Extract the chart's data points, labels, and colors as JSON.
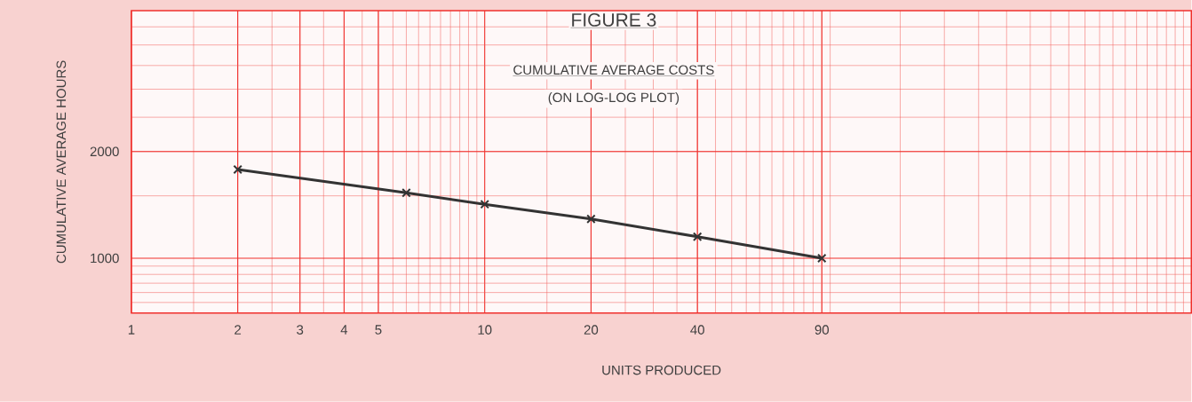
{
  "chart_data": {
    "type": "line",
    "title": "FIGURE 3",
    "subtitle": "CUMULATIVE AVERAGE COSTS",
    "annotations": [
      "(ON LOG-LOG PLOT)"
    ],
    "xlabel": "UNITS PRODUCED",
    "ylabel": "CUMULATIVE AVERAGE HOURS",
    "x": [
      2,
      6,
      10,
      20,
      40,
      90
    ],
    "series": [
      {
        "color": "#333333",
        "values": [
          1780,
          1530,
          1420,
          1290,
          1150,
          1000
        ]
      }
    ],
    "log": "xy",
    "xlim": [
      1,
      1000
    ],
    "ylim": [
      700,
      5000
    ],
    "xticks": [
      1,
      2,
      3,
      4,
      5,
      10,
      20,
      40,
      90
    ],
    "yticks": [
      1000,
      2000
    ],
    "grid": true,
    "marker": "cross",
    "line_style": "solid"
  }
}
